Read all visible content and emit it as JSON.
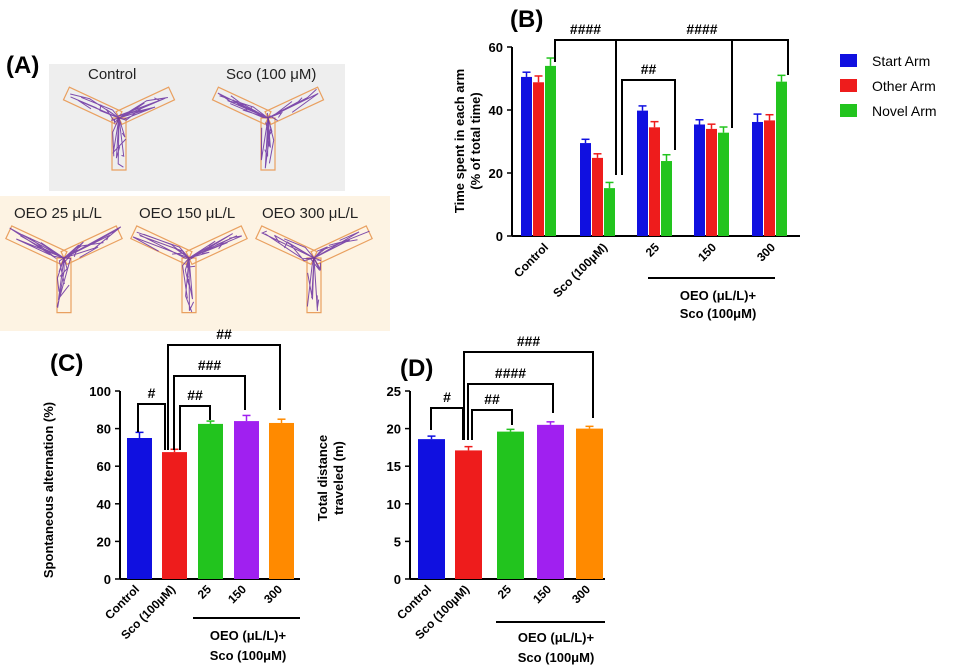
{
  "panels": {
    "a": "(A)",
    "b": "(B)",
    "c": "(C)",
    "d": "(D)"
  },
  "maze_labels": {
    "top": [
      "Control",
      "Sco (100 μM)"
    ],
    "bottom": [
      "OEO 25 μL/L",
      "OEO 150 μL/L",
      "OEO 300 μL/L"
    ]
  },
  "colors": {
    "blue": "#1010e0",
    "red": "#ee1c1c",
    "green": "#22c41e",
    "purple": "#a020f0",
    "orange": "#ff8a00",
    "track": "#6a2fa0",
    "maze_outline": "#e9a060"
  },
  "legend": [
    "Start Arm",
    "Other Arm",
    "Novel Arm"
  ],
  "group_caption": [
    "OEO (μL/L)+",
    "Sco (100μM)"
  ],
  "chart_data": [
    {
      "id": "B",
      "type": "bar",
      "categories": [
        "Control",
        "Sco (100μM)",
        "25",
        "150",
        "300"
      ],
      "series": [
        {
          "name": "Start Arm",
          "values": [
            50.5,
            29.5,
            39.8,
            35.4,
            36.2
          ],
          "errors": [
            1.5,
            1.2,
            1.5,
            1.5,
            2.5
          ]
        },
        {
          "name": "Other Arm",
          "values": [
            48.8,
            24.8,
            34.5,
            34.0,
            36.7
          ],
          "errors": [
            2.0,
            1.3,
            1.8,
            1.5,
            1.8
          ]
        },
        {
          "name": "Novel Arm",
          "values": [
            54.0,
            15.2,
            23.8,
            32.8,
            49.0
          ],
          "errors": [
            2.5,
            1.8,
            2.0,
            1.8,
            2.0
          ]
        }
      ],
      "ylabel": [
        "Time spent in each arm",
        "(% of total time)"
      ],
      "ylim": [
        0,
        60
      ],
      "yticks": [
        0,
        20,
        40,
        60
      ],
      "annotations": [
        "####",
        "####",
        "##"
      ]
    },
    {
      "id": "C",
      "type": "bar",
      "categories": [
        "Control",
        "Sco (100μM)",
        "25",
        "150",
        "300"
      ],
      "values": [
        75.0,
        67.5,
        82.5,
        84.0,
        83.0
      ],
      "errors": [
        3.0,
        1.5,
        1.5,
        3.0,
        2.0
      ],
      "ylabel": "Spontaneous alternation (%)",
      "ylim": [
        0,
        100
      ],
      "yticks": [
        0,
        20,
        40,
        60,
        80,
        100
      ],
      "annotations": [
        "#",
        "##",
        "###",
        "##"
      ]
    },
    {
      "id": "D",
      "type": "bar",
      "categories": [
        "Control",
        "Sco (100μM)",
        "25",
        "150",
        "300"
      ],
      "values": [
        18.6,
        17.1,
        19.6,
        20.5,
        20.0
      ],
      "errors": [
        0.4,
        0.5,
        0.3,
        0.4,
        0.3
      ],
      "ylabel": [
        "Total distance",
        "traveled (m)"
      ],
      "ylim": [
        0,
        25
      ],
      "yticks": [
        0,
        5,
        10,
        15,
        20,
        25
      ],
      "annotations": [
        "#",
        "##",
        "####",
        "###"
      ]
    }
  ]
}
